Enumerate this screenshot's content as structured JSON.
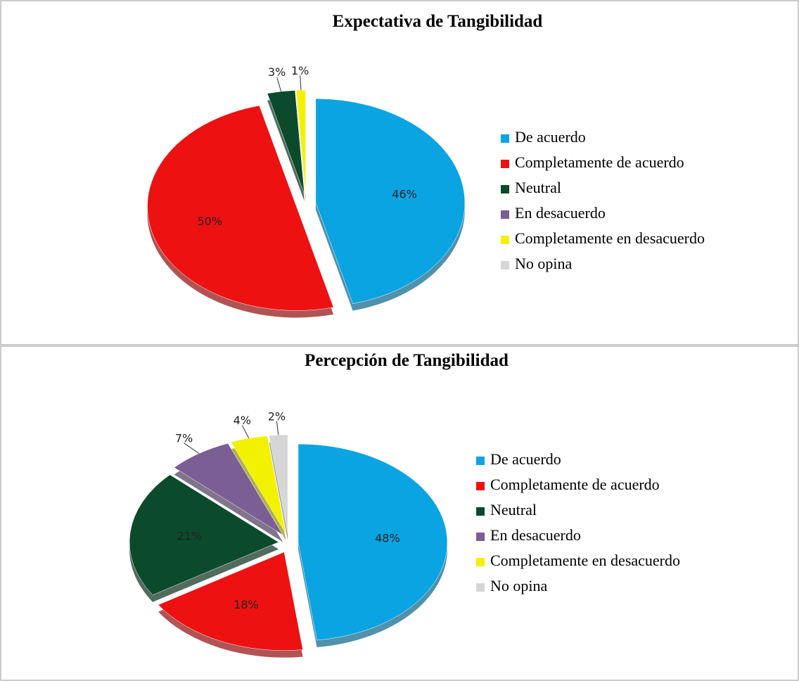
{
  "chart_data": [
    {
      "type": "pie",
      "title": "Expectativa de Tangibilidad",
      "categories": [
        "De acuerdo",
        "Completamente de acuerdo",
        "Neutral",
        "En desacuerdo",
        "Completamente en desacuerdo",
        "No opina"
      ],
      "values": [
        46,
        50,
        3,
        0,
        1,
        0
      ],
      "value_labels": [
        "46%",
        "50%",
        "3%",
        null,
        "1%",
        null
      ],
      "colors": [
        "#0aa4e2",
        "#ee1111",
        "#0c4a2c",
        "#7a5e94",
        "#f2f200",
        "#d6d6d6"
      ]
    },
    {
      "type": "pie",
      "title": "Percepción de Tangibilidad",
      "categories": [
        "De acuerdo",
        "Completamente de acuerdo",
        "Neutral",
        "En desacuerdo",
        "Completamente en desacuerdo",
        "No opina"
      ],
      "values": [
        48,
        18,
        21,
        7,
        4,
        2
      ],
      "value_labels": [
        "48%",
        "18%",
        "21%",
        "7%",
        "4%",
        "2%"
      ],
      "colors": [
        "#0aa4e2",
        "#ee1111",
        "#0c4a2c",
        "#7a5e94",
        "#f2f200",
        "#d6d6d6"
      ]
    }
  ]
}
